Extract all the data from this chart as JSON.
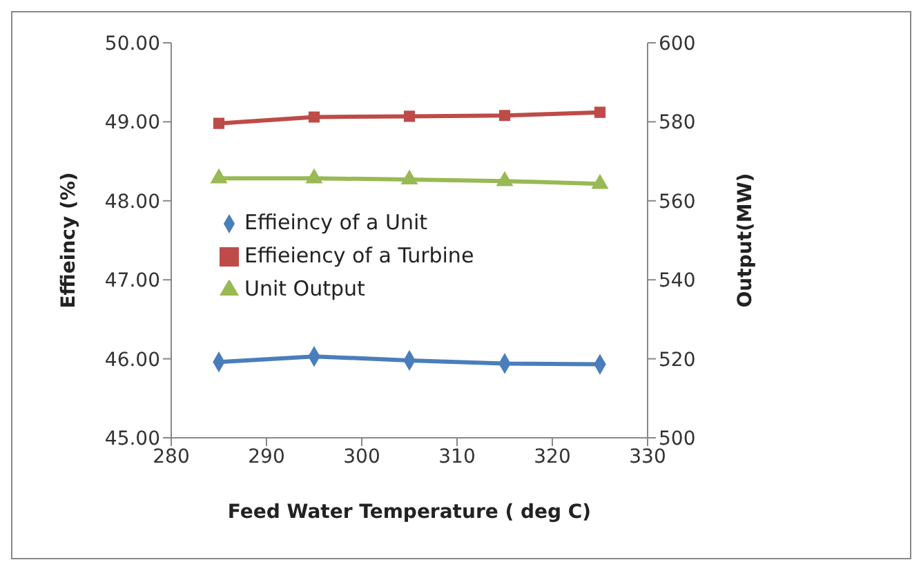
{
  "chart_data": {
    "type": "line",
    "xlabel": "Feed Water Temperature ( deg C)",
    "ylabel": "Effieincy (%)",
    "y2label": "Output(MW)",
    "x": [
      285,
      295,
      305,
      315,
      325
    ],
    "xlim": [
      280,
      330
    ],
    "xticks": [
      280,
      290,
      300,
      310,
      320,
      330
    ],
    "ylim": [
      45,
      50
    ],
    "yticks": [
      {
        "value": 45,
        "label": "45.00"
      },
      {
        "value": 46,
        "label": "46.00"
      },
      {
        "value": 47,
        "label": "47.00"
      },
      {
        "value": 48,
        "label": "48.00"
      },
      {
        "value": 49,
        "label": "49.00"
      },
      {
        "value": 50,
        "label": "50.00"
      }
    ],
    "y2lim": [
      500,
      600
    ],
    "y2ticks": [
      500,
      520,
      540,
      560,
      580,
      600
    ],
    "grid": false,
    "legend": "left",
    "series": [
      {
        "name": "Effieincy of a Unit",
        "color": "#4a7ebb",
        "marker": "diamond",
        "values": [
          45.96,
          46.03,
          45.98,
          45.94,
          45.93
        ]
      },
      {
        "name": "Effieiency of a Turbine",
        "color": "#be4b48",
        "marker": "square",
        "values": [
          48.98,
          49.06,
          49.07,
          49.08,
          49.12
        ]
      },
      {
        "name": "Unit Output",
        "color": "#98b954",
        "marker": "triangle",
        "axis": "y2",
        "values": [
          565.7,
          565.7,
          565.4,
          565.0,
          564.3
        ]
      }
    ]
  }
}
